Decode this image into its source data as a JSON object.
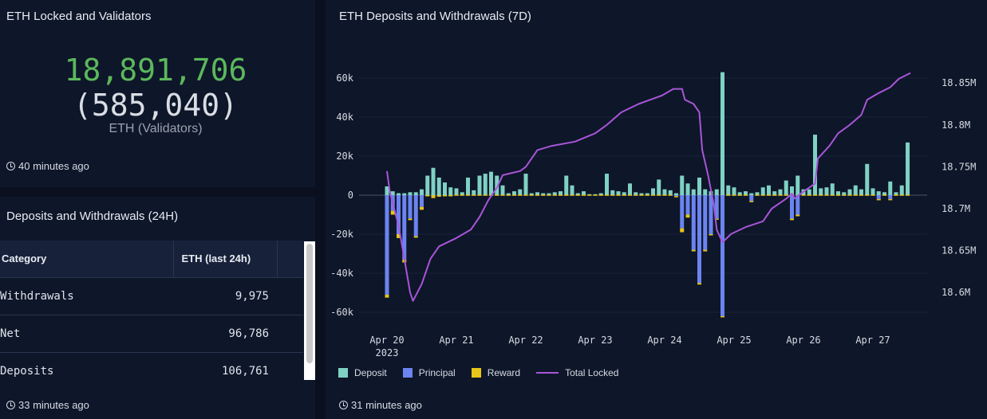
{
  "locked": {
    "title": "ETH Locked and Validators",
    "value": "18,891,706",
    "validators": "(585,040)",
    "unit_label": "ETH (Validators)",
    "updated": "40 minutes ago",
    "value_color": "#5cb85c"
  },
  "table_panel": {
    "title": "Deposits and Withdrawals (24H)",
    "columns": [
      "Category",
      "ETH (last 24h)"
    ],
    "rows": [
      {
        "category": "Withdrawals",
        "eth": "9,975"
      },
      {
        "category": "Net",
        "eth": "96,786"
      },
      {
        "category": "Deposits",
        "eth": "106,761"
      }
    ],
    "updated": "33 minutes ago"
  },
  "chart_panel": {
    "title": "ETH Deposits and Withdrawals (7D)",
    "updated": "31 minutes ago"
  },
  "chart_data": {
    "type": "bar",
    "title": "ETH Deposits and Withdrawals (7D)",
    "stacked": true,
    "x_ticks": [
      "Apr 20\n2023",
      "Apr 21",
      "Apr 22",
      "Apr 23",
      "Apr 24",
      "Apr 25",
      "Apr 26",
      "Apr 27"
    ],
    "y_ticks_left": [
      "60k",
      "40k",
      "20k",
      "0",
      "-20k",
      "-40k",
      "-60k"
    ],
    "y_ticks_right": [
      "18.85M",
      "18.8M",
      "18.75M",
      "18.7M",
      "18.65M",
      "18.6M"
    ],
    "ylim_left": [
      -66000,
      66000
    ],
    "ylim_right": [
      18.575,
      18.87
    ],
    "grid": true,
    "legend": "bottom-left",
    "first_bin": "2023-04-20 00:00",
    "bin_hours": 2,
    "series": [
      {
        "name": "Deposit",
        "color": "#7fd1c4",
        "values": [
          4500,
          2000,
          1000,
          1000,
          1500,
          1500,
          3000,
          10000,
          14000,
          9000,
          6500,
          4000,
          3500,
          1500,
          9000,
          2500,
          10000,
          11000,
          12000,
          10000,
          5000,
          1000,
          2000,
          3000,
          11000,
          1000,
          1500,
          1000,
          1000,
          1500,
          2000,
          10000,
          5000,
          1000,
          2000,
          500,
          500,
          1000,
          11000,
          2500,
          2000,
          1500,
          6000,
          1500,
          1000,
          1000,
          3500,
          8000,
          3000,
          2500,
          1000,
          10000,
          6000,
          3000,
          9000,
          3000,
          2000,
          3000,
          63000,
          5000,
          4000,
          1500,
          2000,
          1000,
          1500,
          4000,
          5000,
          2000,
          3000,
          7500,
          4500,
          10000,
          3000,
          3000,
          31000,
          3500,
          4000,
          6000,
          2000,
          1500,
          3000,
          5000,
          3000,
          16000,
          3500,
          2000,
          1500,
          7000,
          1500,
          5000,
          27000
        ]
      },
      {
        "name": "Principal",
        "color": "#6b84f0",
        "values": [
          -51000,
          -8000,
          -20000,
          -33000,
          -12000,
          -21000,
          -6000,
          0,
          0,
          0,
          0,
          0,
          0,
          0,
          0,
          0,
          0,
          0,
          0,
          0,
          0,
          0,
          0,
          0,
          0,
          0,
          0,
          0,
          0,
          0,
          0,
          0,
          0,
          0,
          0,
          0,
          0,
          0,
          0,
          0,
          0,
          0,
          0,
          0,
          0,
          0,
          0,
          0,
          0,
          0,
          -500,
          -17000,
          -10000,
          -28000,
          -45000,
          -28000,
          -20000,
          -12000,
          -62000,
          0,
          0,
          0,
          0,
          -3000,
          0,
          0,
          0,
          0,
          0,
          0,
          -12000,
          -10000,
          0,
          0,
          0,
          0,
          0,
          0,
          0,
          0,
          0,
          0,
          0,
          0,
          0,
          -2000,
          0,
          -2000,
          0,
          0,
          0
        ]
      },
      {
        "name": "Reward",
        "color": "#e6c619",
        "values": [
          -1500,
          -2000,
          -2000,
          -1500,
          -800,
          -800,
          -1500,
          -500,
          -1500,
          -800,
          -500,
          -300,
          300,
          300,
          300,
          300,
          300,
          300,
          300,
          300,
          300,
          300,
          300,
          300,
          300,
          300,
          300,
          300,
          300,
          300,
          300,
          300,
          300,
          300,
          300,
          300,
          300,
          300,
          300,
          300,
          300,
          300,
          300,
          300,
          300,
          300,
          300,
          300,
          300,
          300,
          -300,
          -2000,
          -1500,
          -800,
          -800,
          -800,
          -600,
          -500,
          -300,
          300,
          300,
          300,
          300,
          -300,
          300,
          300,
          300,
          300,
          300,
          300,
          -800,
          -800,
          300,
          300,
          300,
          300,
          300,
          300,
          300,
          300,
          300,
          300,
          300,
          300,
          300,
          -600,
          300,
          -600,
          300,
          300,
          300
        ]
      }
    ],
    "line": {
      "name": "Total Locked",
      "color": "#a855d8",
      "axis": "right",
      "points": [
        [
          "2023-04-20 00:00",
          18.745
        ],
        [
          "2023-04-20 01:00",
          18.72
        ],
        [
          "2023-04-20 04:00",
          18.68
        ],
        [
          "2023-04-20 06:00",
          18.64
        ],
        [
          "2023-04-20 08:00",
          18.6
        ],
        [
          "2023-04-20 09:00",
          18.59
        ],
        [
          "2023-04-20 12:00",
          18.61
        ],
        [
          "2023-04-20 15:00",
          18.64
        ],
        [
          "2023-04-20 18:00",
          18.655
        ],
        [
          "2023-04-21 00:00",
          18.665
        ],
        [
          "2023-04-21 05:00",
          18.675
        ],
        [
          "2023-04-21 08:00",
          18.69
        ],
        [
          "2023-04-21 11:00",
          18.71
        ],
        [
          "2023-04-21 14:00",
          18.725
        ],
        [
          "2023-04-21 16:00",
          18.74
        ],
        [
          "2023-04-21 22:00",
          18.745
        ],
        [
          "2023-04-22 00:00",
          18.75
        ],
        [
          "2023-04-22 04:00",
          18.77
        ],
        [
          "2023-04-22 09:00",
          18.775
        ],
        [
          "2023-04-22 17:00",
          18.78
        ],
        [
          "2023-04-23 00:00",
          18.79
        ],
        [
          "2023-04-23 04:00",
          18.8
        ],
        [
          "2023-04-23 09:00",
          18.815
        ],
        [
          "2023-04-23 15:00",
          18.825
        ],
        [
          "2023-04-23 19:00",
          18.83
        ],
        [
          "2023-04-23 23:00",
          18.835
        ],
        [
          "2023-04-24 03:00",
          18.843
        ],
        [
          "2023-04-24 06:00",
          18.843
        ],
        [
          "2023-04-24 07:00",
          18.83
        ],
        [
          "2023-04-24 10:00",
          18.825
        ],
        [
          "2023-04-24 12:00",
          18.815
        ],
        [
          "2023-04-24 13:00",
          18.77
        ],
        [
          "2023-04-24 15:00",
          18.74
        ],
        [
          "2023-04-24 17:00",
          18.705
        ],
        [
          "2023-04-24 18:00",
          18.675
        ],
        [
          "2023-04-24 20:00",
          18.66
        ],
        [
          "2023-04-24 23:00",
          18.67
        ],
        [
          "2023-04-25 04:00",
          18.678
        ],
        [
          "2023-04-25 10:00",
          18.685
        ],
        [
          "2023-04-25 13:00",
          18.7
        ],
        [
          "2023-04-25 18:00",
          18.712
        ],
        [
          "2023-04-25 20:00",
          18.718
        ],
        [
          "2023-04-25 21:00",
          18.712
        ],
        [
          "2023-04-25 23:00",
          18.718
        ],
        [
          "2023-04-26 04:00",
          18.73
        ],
        [
          "2023-04-26 05:00",
          18.76
        ],
        [
          "2023-04-26 09:00",
          18.775
        ],
        [
          "2023-04-26 12:00",
          18.79
        ],
        [
          "2023-04-26 16:00",
          18.8
        ],
        [
          "2023-04-26 20:00",
          18.812
        ],
        [
          "2023-04-26 22:00",
          18.83
        ],
        [
          "2023-04-27 02:00",
          18.838
        ],
        [
          "2023-04-27 06:00",
          18.845
        ],
        [
          "2023-04-27 09:00",
          18.855
        ],
        [
          "2023-04-27 13:00",
          18.862
        ]
      ]
    }
  }
}
